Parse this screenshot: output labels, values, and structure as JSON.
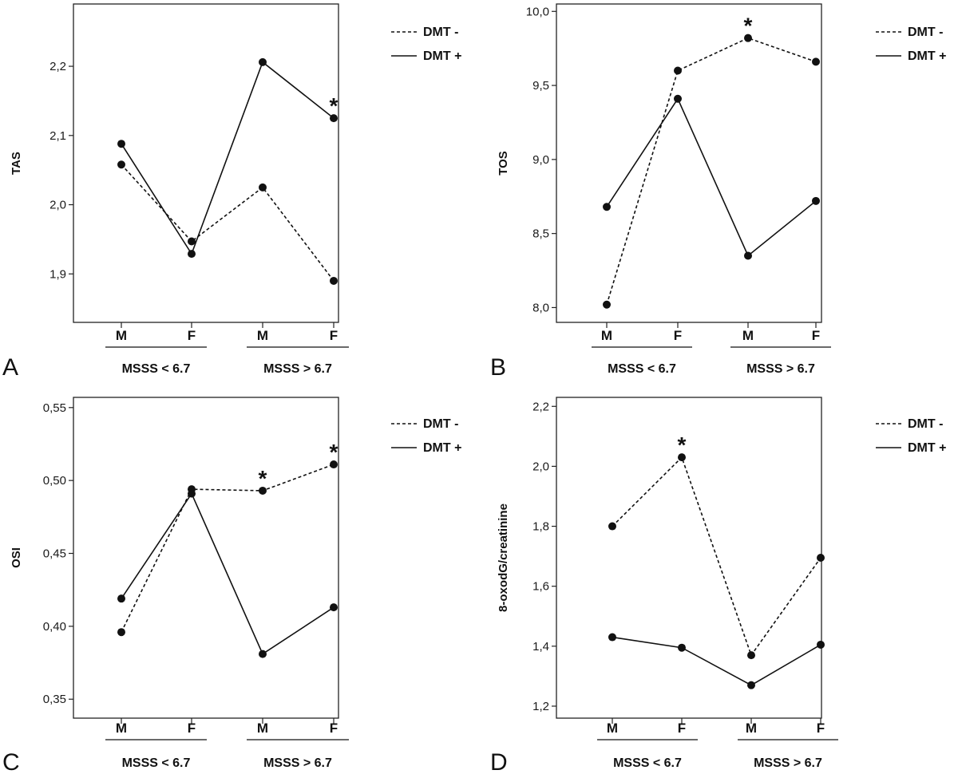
{
  "chart_data": [
    {
      "type": "line",
      "panel_label": "A",
      "ylabel": "TAS",
      "ylim": [
        1.83,
        2.29
      ],
      "yticks": [
        1.9,
        2.0,
        2.1,
        2.2
      ],
      "ytick_labels": [
        "1,9",
        "2,0",
        "2,1",
        "2,2"
      ],
      "categories": [
        "M",
        "F",
        "M",
        "F"
      ],
      "groups": [
        "MSSS < 6.7",
        "MSSS > 6.7"
      ],
      "series": [
        {
          "name": "DMT -",
          "style": "dashed",
          "values": [
            2.058,
            1.947,
            2.025,
            1.89
          ]
        },
        {
          "name": "DMT +",
          "style": "solid",
          "values": [
            2.088,
            1.929,
            2.206,
            2.125
          ]
        }
      ],
      "significance": [
        {
          "index": 3,
          "series": 1,
          "label": "*"
        }
      ]
    },
    {
      "type": "line",
      "panel_label": "B",
      "ylabel": "TOS",
      "ylim": [
        7.9,
        10.05
      ],
      "yticks": [
        8.0,
        8.5,
        9.0,
        9.5,
        10.0
      ],
      "ytick_labels": [
        "8,0",
        "8,5",
        "9,0",
        "9,5",
        "10,0"
      ],
      "categories": [
        "M",
        "F",
        "M",
        "F"
      ],
      "groups": [
        "MSSS < 6.7",
        "MSSS > 6.7"
      ],
      "series": [
        {
          "name": "DMT -",
          "style": "dashed",
          "values": [
            8.02,
            9.6,
            9.82,
            9.66
          ]
        },
        {
          "name": "DMT +",
          "style": "solid",
          "values": [
            8.68,
            9.41,
            8.35,
            8.72
          ]
        }
      ],
      "significance": [
        {
          "index": 2,
          "series": 0,
          "label": "*"
        }
      ]
    },
    {
      "type": "line",
      "panel_label": "C",
      "ylabel": "OSI",
      "ylim": [
        0.337,
        0.557
      ],
      "yticks": [
        0.35,
        0.4,
        0.45,
        0.5,
        0.55
      ],
      "ytick_labels": [
        "0,35",
        "0,40",
        "0,45",
        "0,50",
        "0,55"
      ],
      "categories": [
        "M",
        "F",
        "M",
        "F"
      ],
      "groups": [
        "MSSS < 6.7",
        "MSSS > 6.7"
      ],
      "series": [
        {
          "name": "DMT -",
          "style": "dashed",
          "values": [
            0.396,
            0.494,
            0.493,
            0.511
          ]
        },
        {
          "name": "DMT +",
          "style": "solid",
          "values": [
            0.419,
            0.491,
            0.381,
            0.413
          ]
        }
      ],
      "significance": [
        {
          "index": 2,
          "series": 0,
          "label": "*"
        },
        {
          "index": 3,
          "series": 0,
          "label": "*"
        }
      ]
    },
    {
      "type": "line",
      "panel_label": "D",
      "ylabel": "8-oxodG/creatinine",
      "ylim": [
        1.16,
        2.23
      ],
      "yticks": [
        1.2,
        1.4,
        1.6,
        1.8,
        2.0,
        2.2
      ],
      "ytick_labels": [
        "1,2",
        "1,4",
        "1,6",
        "1,8",
        "2,0",
        "2,2"
      ],
      "categories": [
        "M",
        "F",
        "M",
        "F"
      ],
      "groups": [
        "MSSS < 6.7",
        "MSSS > 6.7"
      ],
      "series": [
        {
          "name": "DMT -",
          "style": "dashed",
          "values": [
            1.8,
            2.03,
            1.37,
            1.695
          ]
        },
        {
          "name": "DMT +",
          "style": "solid",
          "values": [
            1.43,
            1.395,
            1.27,
            1.405
          ]
        }
      ],
      "significance": [
        {
          "index": 1,
          "series": 0,
          "label": "*"
        }
      ]
    }
  ]
}
